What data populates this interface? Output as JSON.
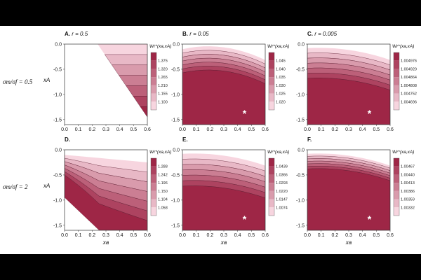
{
  "row_labels": [
    "σm/σf = 0.5",
    "σm/σf = 2"
  ],
  "xlabel": "xa",
  "ylabel": "xA",
  "colorbar_title": "Wr*(xa,xA)",
  "colors": {
    "low": "#f7d5df",
    "high": "#9e2646",
    "contour": "#5a1a2e"
  },
  "chart_data": [
    {
      "type": "heatmap",
      "panel": "A.",
      "param": "r = 0.5",
      "xlim": [
        0,
        0.6
      ],
      "ylim": [
        -1.6,
        0
      ],
      "xticks": [
        "0.0",
        "0.1",
        "0.2",
        "0.3",
        "0.4",
        "0.5",
        "0.6"
      ],
      "yticks": [
        "0.0",
        "-0.5",
        "-1.0",
        "-1.5"
      ],
      "region": "right-of-diagonal",
      "levels": [
        "1.375",
        "1.320",
        "1.265",
        "1.210",
        "1.155",
        "1.100"
      ],
      "star": false
    },
    {
      "type": "heatmap",
      "panel": "B.",
      "param": "r = 0.05",
      "xlim": [
        0,
        0.6
      ],
      "ylim": [
        -1.6,
        0
      ],
      "xticks": [
        "0.0",
        "0.1",
        "0.2",
        "0.3",
        "0.4",
        "0.5",
        "0.6"
      ],
      "yticks": [
        "0.0",
        "-0.5",
        "-1.0",
        "-1.5"
      ],
      "region": "full",
      "levels": [
        "1.045",
        "1.040",
        "1.035",
        "1.030",
        "1.025",
        "1.020"
      ],
      "star": true
    },
    {
      "type": "heatmap",
      "panel": "C.",
      "param": "r = 0.005",
      "xlim": [
        0,
        0.6
      ],
      "ylim": [
        -1.6,
        0
      ],
      "xticks": [
        "0.0",
        "0.1",
        "0.2",
        "0.3",
        "0.4",
        "0.5",
        "0.6"
      ],
      "yticks": [
        "0.0",
        "-0.5",
        "-1.0",
        "-1.5"
      ],
      "region": "full",
      "levels": [
        "1.004976",
        "1.004920",
        "1.004864",
        "1.004808",
        "1.004752",
        "1.004696"
      ],
      "star": true
    },
    {
      "type": "heatmap",
      "panel": "D.",
      "param": "",
      "xlim": [
        0,
        0.6
      ],
      "ylim": [
        -1.6,
        0
      ],
      "xticks": [
        "0.0",
        "0.1",
        "0.2",
        "0.3",
        "0.4",
        "0.5",
        "0.6"
      ],
      "yticks": [
        "0.0",
        "-0.5",
        "-1.0",
        "-1.5"
      ],
      "region": "upper-diagonal",
      "levels": [
        "1.288",
        "1.242",
        "1.196",
        "1.150",
        "1.104",
        "1.058"
      ],
      "star": false
    },
    {
      "type": "heatmap",
      "panel": "E.",
      "param": "",
      "xlim": [
        0,
        0.6
      ],
      "ylim": [
        -1.6,
        0
      ],
      "xticks": [
        "0.0",
        "0.1",
        "0.2",
        "0.3",
        "0.4",
        "0.5",
        "0.6"
      ],
      "yticks": [
        "0.0",
        "-0.5",
        "-1.0",
        "-1.5"
      ],
      "region": "full",
      "levels": [
        "1.0439",
        "1.0366",
        "1.0293",
        "1.0220",
        "1.0147",
        "1.0074"
      ],
      "star": true
    },
    {
      "type": "heatmap",
      "panel": "F.",
      "param": "",
      "xlim": [
        0,
        0.6
      ],
      "ylim": [
        -1.6,
        0
      ],
      "xticks": [
        "0.0",
        "0.1",
        "0.2",
        "0.3",
        "0.4",
        "0.5",
        "0.6"
      ],
      "yticks": [
        "0.0",
        "-0.5",
        "-1.0",
        "-1.5"
      ],
      "region": "full",
      "levels": [
        "1.00467",
        "1.00440",
        "1.00413",
        "1.00386",
        "1.00359",
        "1.00332"
      ],
      "star": true
    }
  ]
}
